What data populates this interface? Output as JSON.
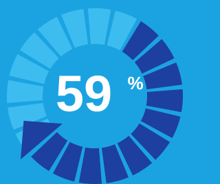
{
  "gauge": {
    "value": 59,
    "unit": "%"
  }
}
